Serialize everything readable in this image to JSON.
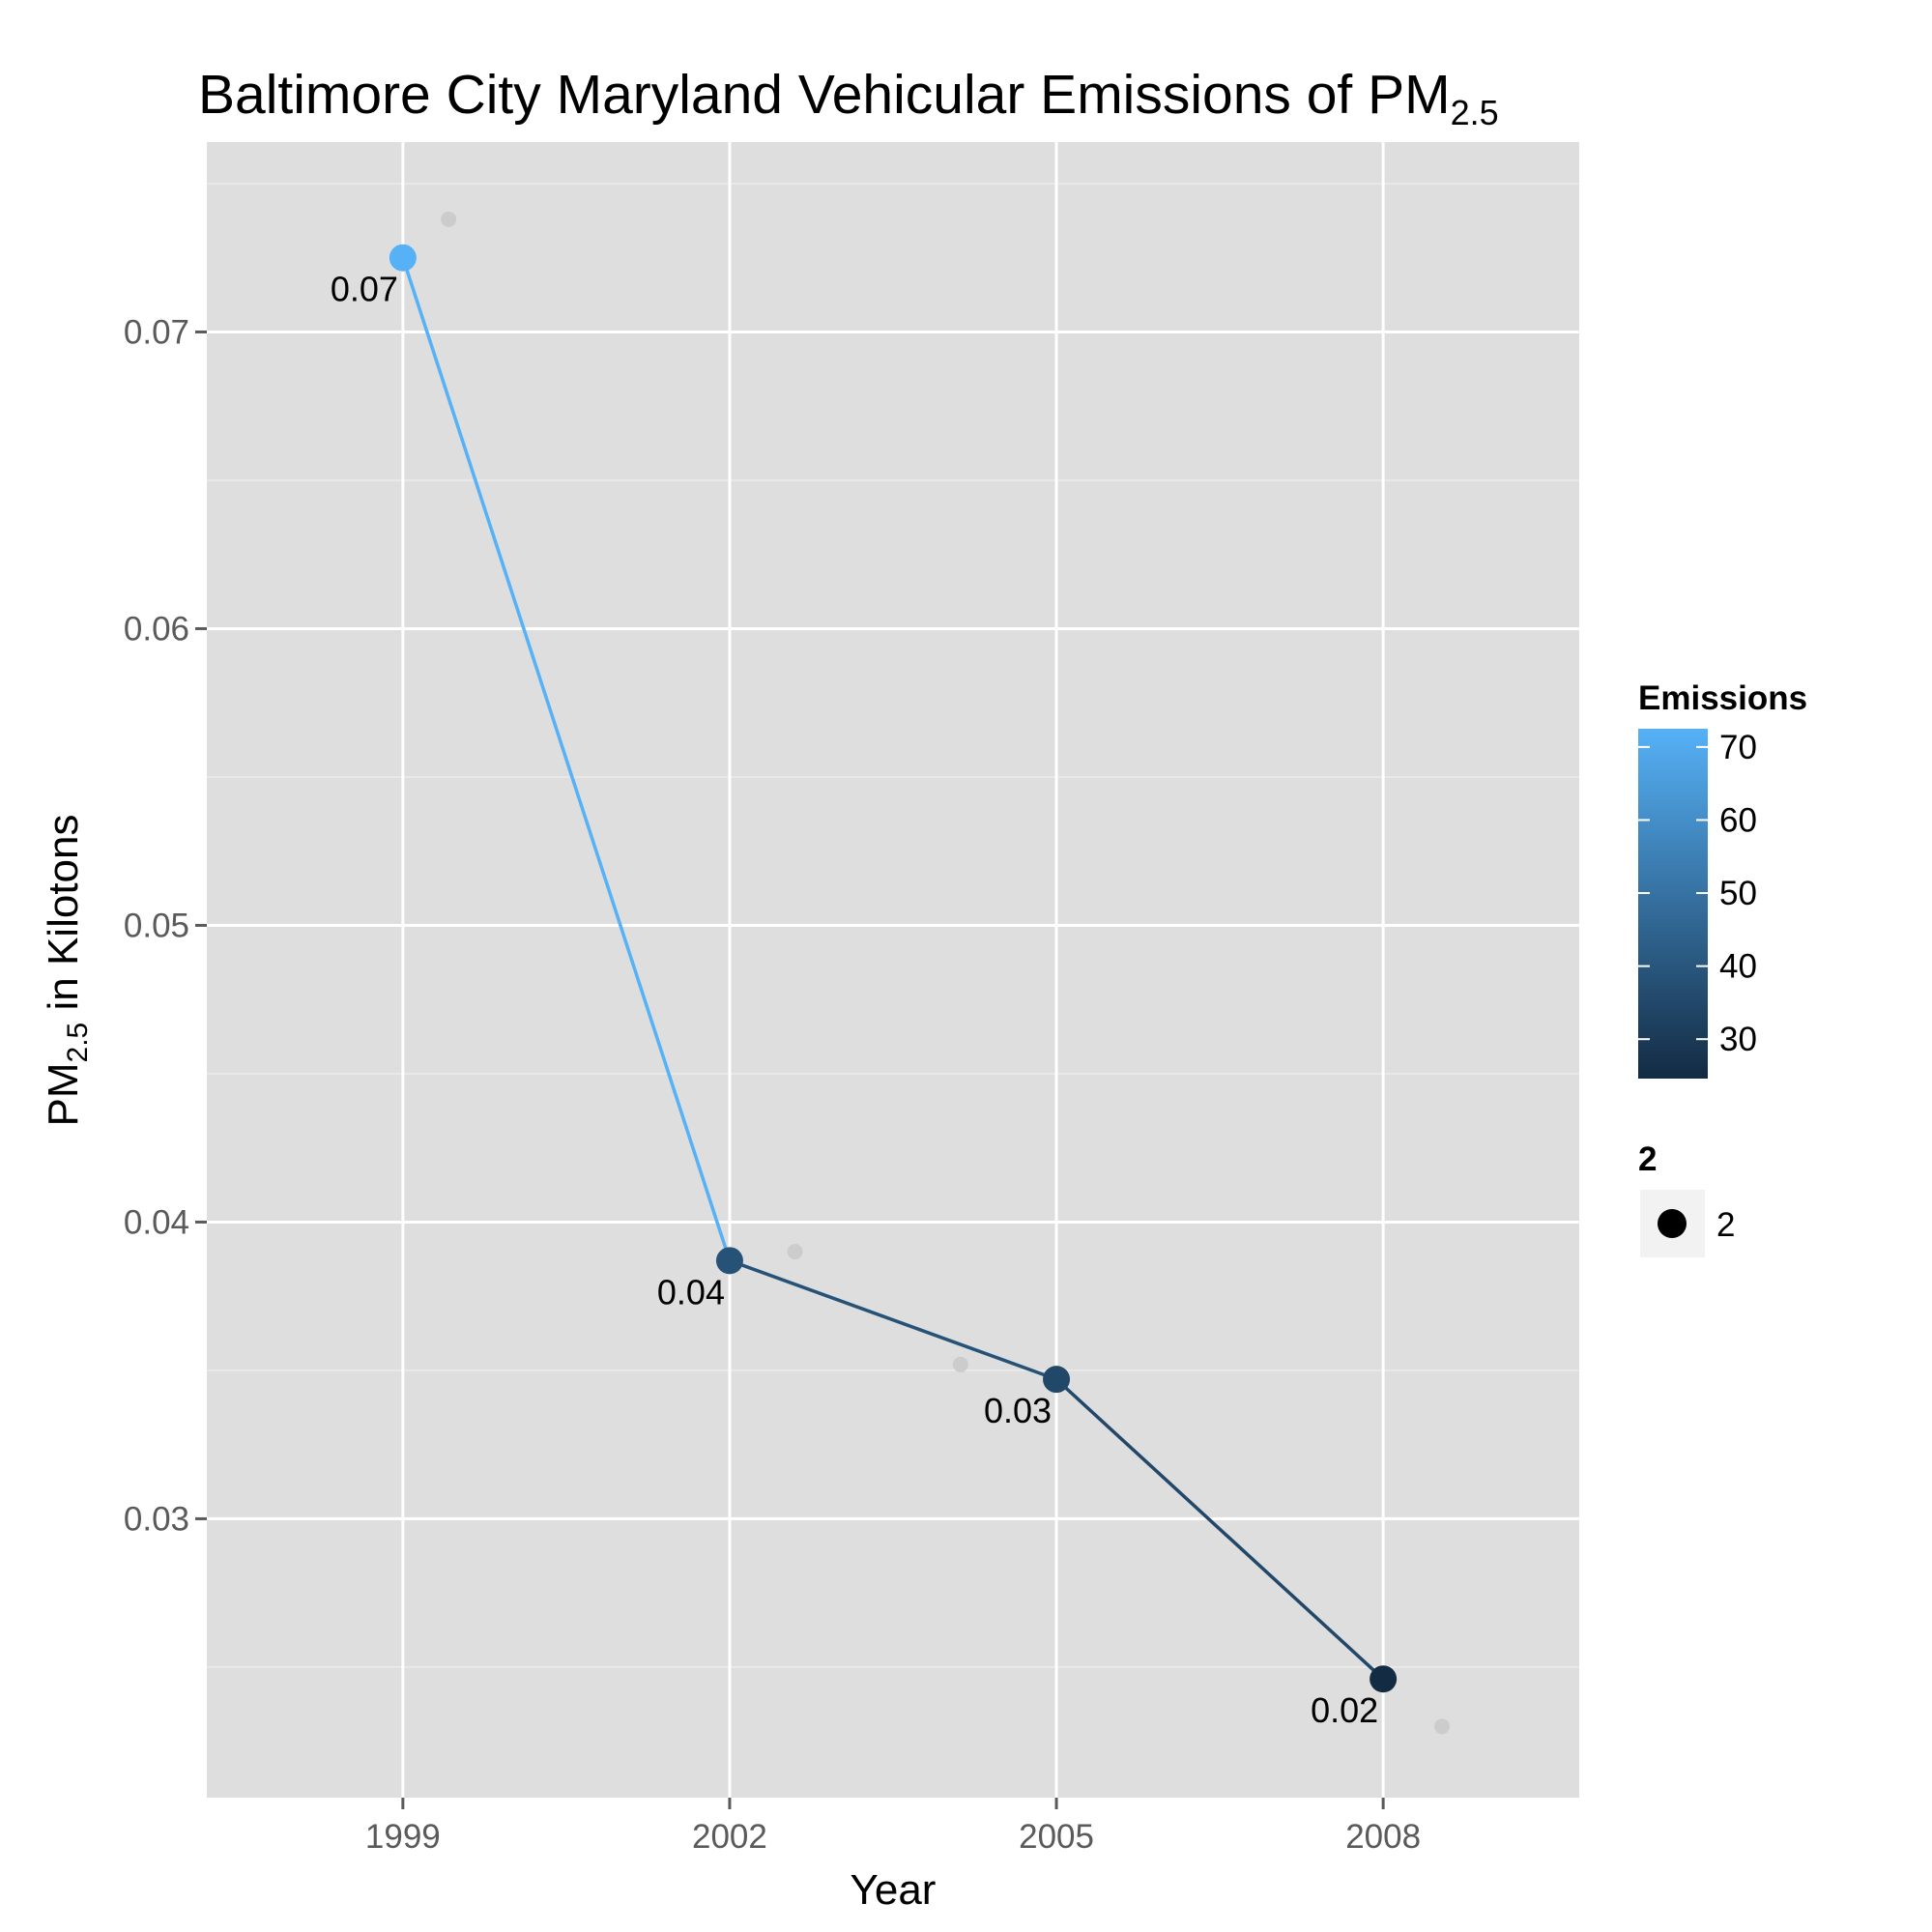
{
  "chart_data": {
    "type": "line",
    "title": {
      "main": "Baltimore City Maryland Vehicular Emissions of PM",
      "subscript": "2.5"
    },
    "xlabel": "Year",
    "ylabel": {
      "prefix": "PM",
      "subscript": "2.5",
      "suffix": " in Kilotons"
    },
    "x": [
      1999,
      2002,
      2005,
      2008
    ],
    "x_tick_labels": [
      "1999",
      "2002",
      "2005",
      "2008"
    ],
    "xlim": [
      1997.2,
      2009.8
    ],
    "ylim": [
      0.0206,
      0.0764
    ],
    "y_ticks": [
      0.03,
      0.04,
      0.05,
      0.06,
      0.07
    ],
    "y_tick_labels": [
      "0.03",
      "0.04",
      "0.05",
      "0.06",
      "0.07"
    ],
    "grid": true,
    "series": [
      {
        "values": [
          0.0725,
          0.0387,
          0.0347,
          0.0246
        ],
        "emissions_color_values": [
          72.5,
          38.7,
          34.7,
          24.6
        ],
        "data_labels": [
          "0.07",
          "0.04",
          "0.03",
          "0.02"
        ]
      }
    ],
    "jitter_points": [
      {
        "x": 1999.42,
        "y": 0.0738
      },
      {
        "x": 2002.6,
        "y": 0.039
      },
      {
        "x": 2004.12,
        "y": 0.0352
      },
      {
        "x": 2008.54,
        "y": 0.023
      }
    ],
    "legend": {
      "position": "right",
      "color": {
        "title": "Emissions",
        "range": [
          24.6,
          72.5
        ],
        "ticks": [
          30,
          40,
          50,
          60,
          70
        ],
        "tick_labels": [
          "30",
          "40",
          "50",
          "60",
          "70"
        ],
        "low_color": "#132B43",
        "high_color": "#56B1F7"
      },
      "size": {
        "title": "2",
        "label": "2"
      }
    },
    "colors": {
      "panel_background": "#dedede",
      "grid_major": "#ffffff",
      "grid_minor": "#ececec",
      "jitter_point": "#cccccc",
      "tick_text": "#5a5a5a"
    }
  }
}
